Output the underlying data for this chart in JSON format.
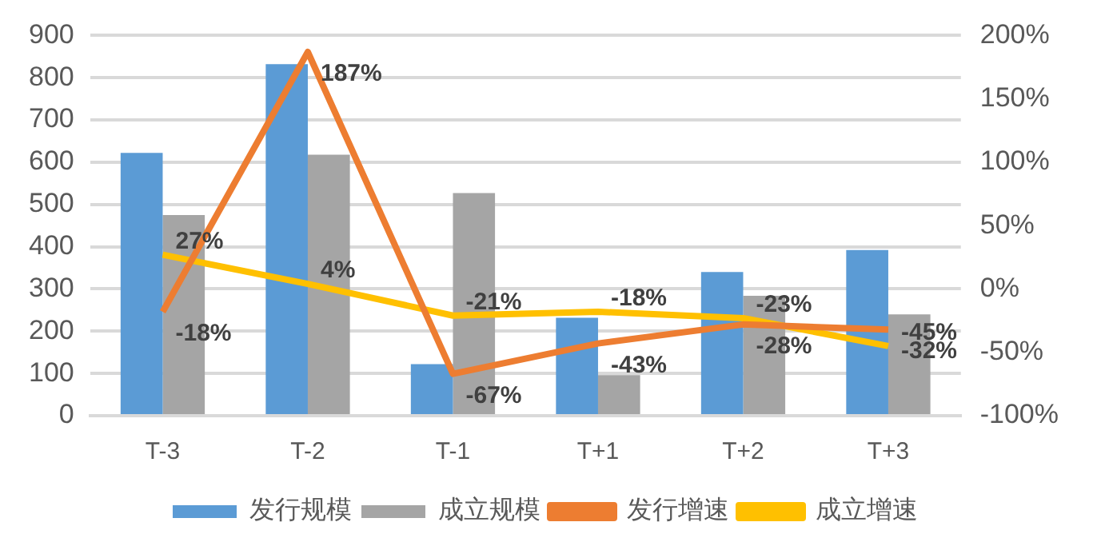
{
  "chart_data": {
    "type": "bar",
    "categories": [
      "T-3",
      "T-2",
      "T-1",
      "T+1",
      "T+2",
      "T+3"
    ],
    "series": [
      {
        "name": "发行规模",
        "color": "#5b9bd5",
        "values": [
          622,
          832,
          122,
          232,
          340,
          392
        ]
      },
      {
        "name": "成立规模",
        "color": "#a5a5a5",
        "values": [
          475,
          618,
          527,
          96,
          284,
          240
        ]
      },
      {
        "name": "发行增速",
        "type": "line",
        "axis": "y2",
        "color": "#ed7d31",
        "values": [
          -18,
          187,
          -67,
          -43,
          -28,
          -32
        ],
        "value_labels": [
          "-18%",
          "187%",
          "-67%",
          "-43%",
          "-28%",
          "-32%"
        ]
      },
      {
        "name": "成立增速",
        "type": "line",
        "axis": "y2",
        "color": "#ffc000",
        "values": [
          27,
          4,
          -21,
          -18,
          -23,
          -45
        ],
        "value_labels": [
          "27%",
          "4%",
          "-21%",
          "-18%",
          "-23%",
          "-45%"
        ]
      }
    ],
    "ylim": [
      0,
      900
    ],
    "yticks": [
      0,
      100,
      200,
      300,
      400,
      500,
      600,
      700,
      800,
      900
    ],
    "y2lim": [
      -100,
      200
    ],
    "y2ticks": [
      {
        "value": -100,
        "label": "-100%"
      },
      {
        "value": -50,
        "label": "-50%"
      },
      {
        "value": 0,
        "label": "0%"
      },
      {
        "value": 50,
        "label": "50%"
      },
      {
        "value": 100,
        "label": "100%"
      },
      {
        "value": 150,
        "label": "150%"
      },
      {
        "value": 200,
        "label": "200%"
      }
    ],
    "grid": "y",
    "legend": "bottom",
    "marker": "none",
    "line_style": "solid"
  }
}
